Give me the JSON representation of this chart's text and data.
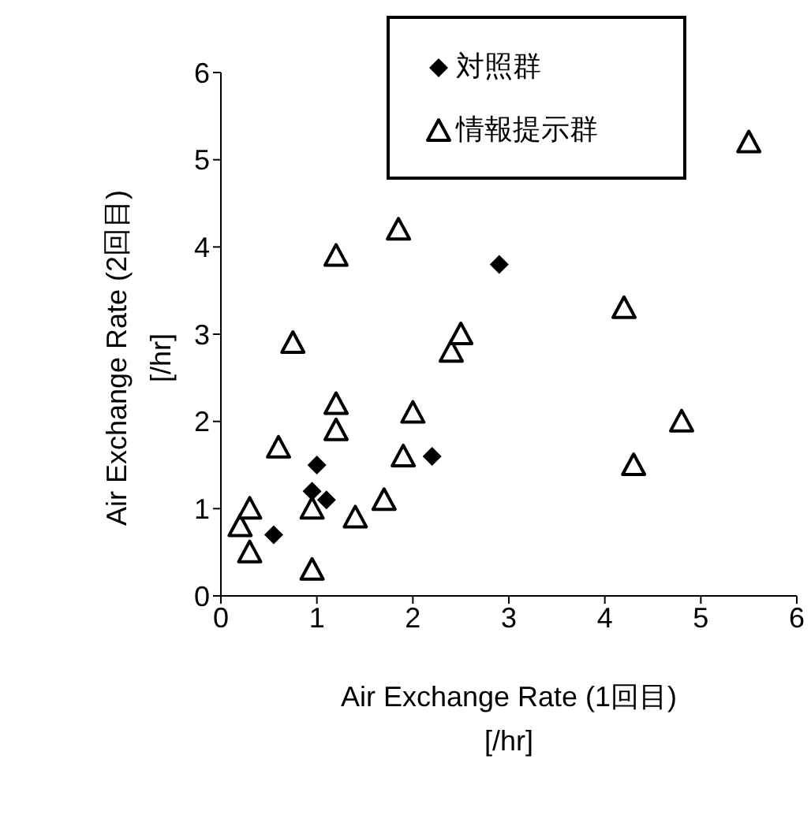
{
  "chart_data": {
    "type": "scatter",
    "xlabel": "Air Exchange Rate (1回目)\n[/hr]",
    "ylabel": "Air Exchange Rate (2回目)\n[/hr]",
    "xlim": [
      0,
      6
    ],
    "xticks": [
      0,
      1,
      2,
      3,
      4,
      5,
      6
    ],
    "ylim": [
      0,
      6
    ],
    "yticks": [
      0,
      1,
      2,
      3,
      4,
      5,
      6
    ],
    "grid": false,
    "legend": "top right",
    "series": [
      {
        "name": "対照群",
        "color": "#000000",
        "marker": "diamond",
        "x": [
          0.55,
          0.95,
          1.0,
          1.1,
          2.2,
          2.9
        ],
        "values": [
          0.7,
          1.2,
          1.5,
          1.1,
          1.6,
          3.8
        ]
      },
      {
        "name": "情報提示群",
        "color": "#000000",
        "marker": "triangle",
        "x": [
          0.2,
          0.3,
          0.3,
          0.6,
          0.75,
          0.95,
          0.95,
          1.2,
          1.2,
          1.2,
          1.4,
          1.7,
          1.85,
          1.9,
          2.0,
          2.4,
          2.5,
          4.2,
          4.3,
          4.8,
          5.5
        ],
        "values": [
          0.8,
          1.0,
          0.5,
          1.7,
          2.9,
          0.3,
          1.0,
          3.9,
          2.2,
          1.9,
          0.9,
          1.1,
          4.2,
          1.6,
          2.1,
          2.8,
          3.0,
          3.3,
          1.5,
          2.0,
          5.2
        ]
      }
    ]
  }
}
